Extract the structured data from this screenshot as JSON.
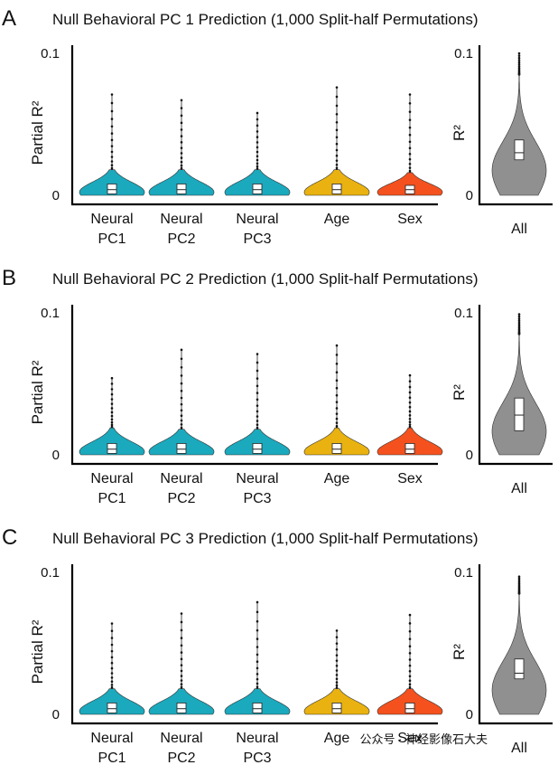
{
  "colors": {
    "neural": "#1ba9bd",
    "age": "#e9b210",
    "sex": "#f4511e",
    "all": "#909090",
    "box": "#ffffff"
  },
  "panels": [
    {
      "letter": "A",
      "title": "Null Behavioral PC 1 Prediction (1,000 Split-half Permutations)"
    },
    {
      "letter": "B",
      "title": "Null Behavioral PC 2 Prediction (1,000 Split-half Permutations)"
    },
    {
      "letter": "C",
      "title": "Null Behavioral PC 3 Prediction (1,000 Split-half Permutations)"
    }
  ],
  "watermark": "公众号 · 神经影像石大夫",
  "chart_data": [
    {
      "type": "violin",
      "title": "Null Behavioral PC 1 Prediction (1,000 Split-half Permutations)",
      "left": {
        "ylabel": "Partial R²",
        "ylim": [
          0,
          0.1
        ],
        "yticks": [
          "0",
          "0.1"
        ],
        "categories": [
          {
            "line1": "Neural",
            "line2": "PC1",
            "color_key": "neural",
            "max": 0.071,
            "q1": 0.001,
            "median": 0.004,
            "q3": 0.008,
            "whisker": 0.018,
            "spread": 0.007
          },
          {
            "line1": "Neural",
            "line2": "PC2",
            "color_key": "neural",
            "max": 0.067,
            "q1": 0.001,
            "median": 0.004,
            "q3": 0.008,
            "whisker": 0.018,
            "spread": 0.007
          },
          {
            "line1": "Neural",
            "line2": "PC3",
            "color_key": "neural",
            "max": 0.058,
            "q1": 0.001,
            "median": 0.004,
            "q3": 0.008,
            "whisker": 0.018,
            "spread": 0.007
          },
          {
            "line1": "Age",
            "line2": "",
            "color_key": "age",
            "max": 0.076,
            "q1": 0.001,
            "median": 0.004,
            "q3": 0.008,
            "whisker": 0.018,
            "spread": 0.007
          },
          {
            "line1": "Sex",
            "line2": "",
            "color_key": "sex",
            "max": 0.071,
            "q1": 0.001,
            "median": 0.004,
            "q3": 0.007,
            "whisker": 0.016,
            "spread": 0.006
          }
        ]
      },
      "right": {
        "ylabel": "R²",
        "ylim": [
          0,
          0.1
        ],
        "yticks": [
          "0",
          "0.1"
        ],
        "category": "All",
        "color_key": "all",
        "max": 0.1,
        "q1": 0.025,
        "median": 0.03,
        "q3": 0.039,
        "whisker": 0.085,
        "spread": 0.02
      }
    },
    {
      "type": "violin",
      "title": "Null Behavioral PC 2 Prediction (1,000 Split-half Permutations)",
      "left": {
        "ylabel": "Partial R²",
        "ylim": [
          0,
          0.1
        ],
        "yticks": [
          "0",
          "0.1"
        ],
        "categories": [
          {
            "line1": "Neural",
            "line2": "PC1",
            "color_key": "neural",
            "max": 0.054,
            "q1": 0.001,
            "median": 0.004,
            "q3": 0.008,
            "whisker": 0.019,
            "spread": 0.007
          },
          {
            "line1": "Neural",
            "line2": "PC2",
            "color_key": "neural",
            "max": 0.074,
            "q1": 0.001,
            "median": 0.004,
            "q3": 0.008,
            "whisker": 0.018,
            "spread": 0.007
          },
          {
            "line1": "Neural",
            "line2": "PC3",
            "color_key": "neural",
            "max": 0.071,
            "q1": 0.001,
            "median": 0.004,
            "q3": 0.008,
            "whisker": 0.018,
            "spread": 0.007
          },
          {
            "line1": "Age",
            "line2": "",
            "color_key": "age",
            "max": 0.077,
            "q1": 0.001,
            "median": 0.004,
            "q3": 0.008,
            "whisker": 0.019,
            "spread": 0.007
          },
          {
            "line1": "Sex",
            "line2": "",
            "color_key": "sex",
            "max": 0.056,
            "q1": 0.001,
            "median": 0.004,
            "q3": 0.008,
            "whisker": 0.019,
            "spread": 0.007
          }
        ]
      },
      "right": {
        "ylabel": "R²",
        "ylim": [
          0,
          0.1
        ],
        "yticks": [
          "0",
          "0.1"
        ],
        "category": "All",
        "color_key": "all",
        "max": 0.099,
        "q1": 0.017,
        "median": 0.028,
        "q3": 0.04,
        "whisker": 0.085,
        "spread": 0.02
      }
    },
    {
      "type": "violin",
      "title": "Null Behavioral PC 3 Prediction (1,000 Split-half Permutations)",
      "left": {
        "ylabel": "Partial R²",
        "ylim": [
          0,
          0.1
        ],
        "yticks": [
          "0",
          "0.1"
        ],
        "categories": [
          {
            "line1": "Neural",
            "line2": "PC1",
            "color_key": "neural",
            "max": 0.064,
            "q1": 0.001,
            "median": 0.004,
            "q3": 0.008,
            "whisker": 0.018,
            "spread": 0.007
          },
          {
            "line1": "Neural",
            "line2": "PC2",
            "color_key": "neural",
            "max": 0.071,
            "q1": 0.001,
            "median": 0.004,
            "q3": 0.008,
            "whisker": 0.018,
            "spread": 0.007
          },
          {
            "line1": "Neural",
            "line2": "PC3",
            "color_key": "neural",
            "max": 0.079,
            "q1": 0.001,
            "median": 0.004,
            "q3": 0.008,
            "whisker": 0.018,
            "spread": 0.007
          },
          {
            "line1": "Age",
            "line2": "",
            "color_key": "age",
            "max": 0.059,
            "q1": 0.001,
            "median": 0.004,
            "q3": 0.008,
            "whisker": 0.018,
            "spread": 0.007
          },
          {
            "line1": "Sex",
            "line2": "",
            "color_key": "sex",
            "max": 0.07,
            "q1": 0.001,
            "median": 0.004,
            "q3": 0.008,
            "whisker": 0.018,
            "spread": 0.007
          }
        ]
      },
      "right": {
        "ylabel": "R²",
        "ylim": [
          0,
          0.1
        ],
        "yticks": [
          "0",
          "0.1"
        ],
        "category": "All",
        "color_key": "all",
        "max": 0.097,
        "q1": 0.025,
        "median": 0.029,
        "q3": 0.039,
        "whisker": 0.085,
        "spread": 0.02
      }
    }
  ]
}
